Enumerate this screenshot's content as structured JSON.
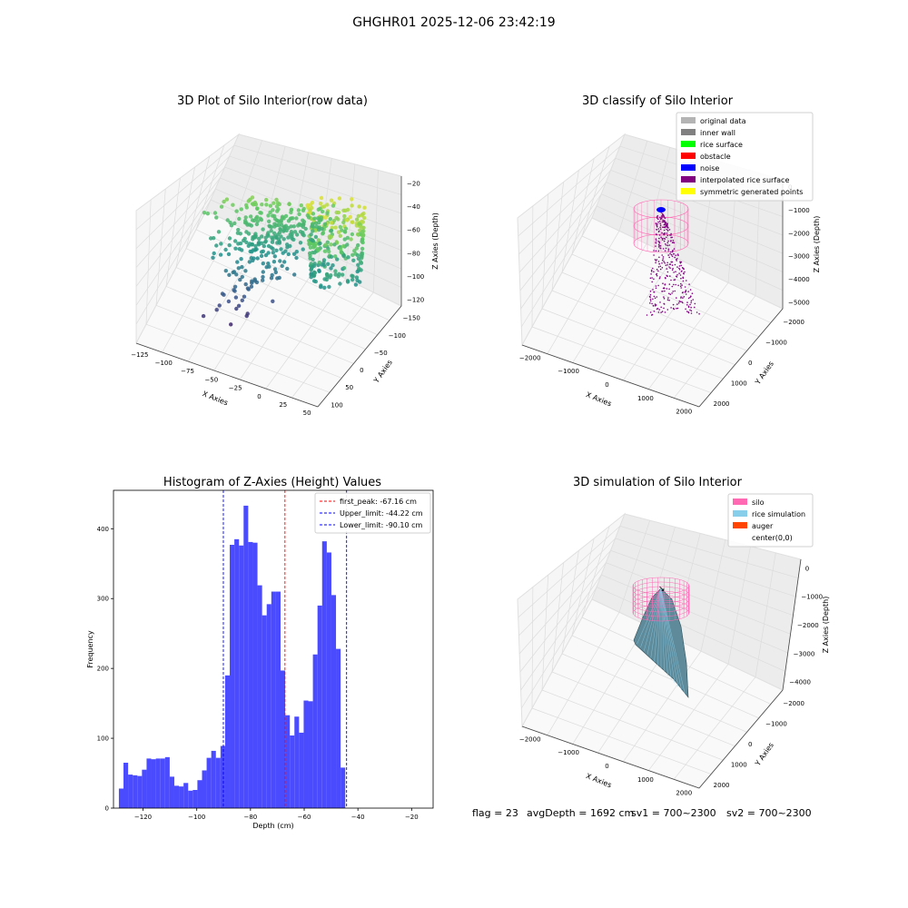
{
  "suptitle": "GHGHR01 2025-12-06 23:42:19",
  "colors": {
    "histogram_bar": "#4a4aff",
    "first_peak_line": "#ff0000",
    "limit_line": "#0000ff",
    "silo": "#ff69b4",
    "rice_simulation": "#87ceeb",
    "auger": "#ff4500",
    "original_data": "#b4b4b4",
    "inner_wall": "#808080",
    "rice_surface": "#00ff00",
    "obstacle": "#ff0000",
    "noise": "#0000ff",
    "interpolated_rice_surface": "#800080",
    "symmetric_generated_points": "#ffff00"
  },
  "footer": {
    "flag": "flag = 23",
    "avg_depth": "avgDepth = 1692 cm",
    "sv1": "sv1 = 700~2300",
    "sv2": "sv2 = 700~2300"
  },
  "chart_data": [
    {
      "type": "scatter",
      "projection": "3d",
      "title": "3D Plot of Silo Interior(row data)",
      "xlabel": "X Axies",
      "ylabel": "Y Axies",
      "zlabel": "Z Axies (Depth)",
      "x_ticks": [
        "−125",
        "−100",
        "−75",
        "−50",
        "−25",
        "0",
        "25",
        "50"
      ],
      "y_ticks": [
        "−150",
        "−100",
        "−50",
        "0",
        "50",
        "100"
      ],
      "z_ticks": [
        "−20",
        "−40",
        "−60",
        "−80",
        "−100",
        "−120"
      ],
      "colormap": "viridis"
    },
    {
      "type": "scatter",
      "projection": "3d",
      "title": "3D classify of Silo Interior",
      "xlabel": "X Axies",
      "ylabel": "Y Axies",
      "zlabel": "Z Axies (Depth)",
      "x_ticks": [
        "−2000",
        "−1000",
        "0",
        "1000",
        "2000"
      ],
      "y_ticks": [
        "−2000",
        "−1000",
        "0",
        "1000",
        "2000"
      ],
      "z_ticks": [
        "0",
        "−1000",
        "−2000",
        "−3000",
        "−4000",
        "−5000"
      ],
      "legend": [
        "original data",
        "inner wall",
        "rice surface",
        "obstacle",
        "noise",
        "interpolated rice surface",
        "symmetric generated points"
      ],
      "legend_position": "top-right"
    },
    {
      "type": "bar",
      "title": "Histogram of Z-Axies (Height) Values",
      "xlabel": "Depth (cm)",
      "ylabel": "Frequency",
      "xlim": [
        -131,
        -12
      ],
      "ylim": [
        0,
        455
      ],
      "x_ticks": [
        -120,
        -100,
        -80,
        -60,
        -40,
        -20
      ],
      "y_ticks": [
        0,
        100,
        200,
        300,
        400
      ],
      "bin_start": -129,
      "bin_width": 1.72,
      "values": [
        28,
        65,
        48,
        47,
        46,
        55,
        71,
        70,
        71,
        71,
        73,
        45,
        32,
        31,
        36,
        25,
        26,
        40,
        54,
        72,
        82,
        72,
        89,
        190,
        377,
        385,
        376,
        433,
        381,
        380,
        319,
        276,
        292,
        310,
        310,
        197,
        133,
        104,
        131,
        108,
        154,
        153,
        220,
        290,
        382,
        366,
        305,
        228,
        58
      ],
      "vlines": [
        {
          "label": "first_peak: -67.16 cm",
          "x": -67.16,
          "color": "#ff0000"
        },
        {
          "label": "Upper_limit: -44.22 cm",
          "x": -44.22,
          "color": "#0000ff"
        },
        {
          "label": "Lower_limit: -90.10 cm",
          "x": -90.1,
          "color": "#0000ff"
        }
      ],
      "legend_position": "top-right"
    },
    {
      "type": "surface",
      "projection": "3d",
      "title": "3D simulation of Silo Interior",
      "xlabel": "X Axies",
      "ylabel": "Y Axies",
      "zlabel": "Z Axies (Depth)",
      "x_ticks": [
        "−2000",
        "−1000",
        "0",
        "1000",
        "2000"
      ],
      "y_ticks": [
        "−2000",
        "−1000",
        "0",
        "1000",
        "2000"
      ],
      "z_ticks": [
        "0",
        "−1000",
        "−2000",
        "−3000",
        "−4000"
      ],
      "legend": [
        "silo",
        "rice simulation",
        "auger",
        "center(0,0)"
      ],
      "legend_position": "top-right"
    }
  ]
}
